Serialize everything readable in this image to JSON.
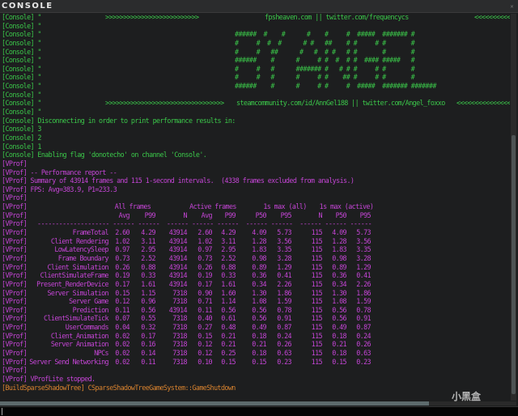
{
  "window": {
    "title": "CONSOLE",
    "watermark": "小黑盒"
  },
  "colors": {
    "console": "#3bc84a",
    "vprof": "#c545d6",
    "build": "#d9832f",
    "background": "#1d1e1f"
  },
  "console_prefix": "[Console] \"",
  "banner1": {
    "left": ">>>>>>>>>>>>>>>>>>>>>>>>>>",
    "center": "fpsheaven.com || twitter.com/frequencycs",
    "right": "<<<<<<<<<<<<"
  },
  "art": [
    "######  #    #      #    #     #  #####  ####### #",
    "#     #  #  #      # #   ##    # #     # #       #",
    "#     #   ##      #   #  # #   # #       #       #",
    "######    #      #     # #  #  # #  #### #####   #",
    "#     #   #      ####### #   # # #     # #       #",
    "#     #   #      #     # #    ## #     # #       #",
    "######    #      #     # #     #  #####  ####### #######"
  ],
  "banner2": {
    "left": ">>>>>>>>>>>>>>>>>>>>>>>>>>>>>>>>>",
    "center": "steamcommunity.com/id/AnnGel188 || twitter.com/Angel_foxxo",
    "right": "<<<<<<<<<<<<<<<<"
  },
  "console_msgs": [
    "[Console] Disconnecting in order to print performance results in:",
    "[Console] 3",
    "[Console] 2",
    "[Console] 1",
    "[Console] Enabling flag 'donotecho' on channel 'Console'."
  ],
  "vprof_prefix": "[VProf]",
  "vprof_msgs": [
    "[VProf] -- Performance report --",
    "[VProf] Summary of 43914 frames and 115 1-second intervals.  (4338 frames excluded from analysis.)",
    "[VProf] FPS: Avg=383.9, P1=233.3"
  ],
  "table": {
    "groups": [
      "All frames",
      "Active frames",
      "1s max (all)",
      "1s max (active)"
    ],
    "columns": [
      "Avg",
      "P99",
      "N",
      "Avg",
      "P99",
      "P50",
      "P95",
      "N",
      "P50",
      "P95"
    ],
    "separator": "-------------------- ------ ------  ------ ------ ------  ------ ------  ------ ------ ------",
    "rows": [
      [
        "FrameTotal",
        "2.60",
        "4.29",
        "43914",
        "2.60",
        "4.29",
        "4.09",
        "5.73",
        "115",
        "4.09",
        "5.73"
      ],
      [
        "Client Rendering",
        "1.02",
        "3.11",
        "43914",
        "1.02",
        "3.11",
        "1.28",
        "3.56",
        "115",
        "1.28",
        "3.56"
      ],
      [
        "LowLatencySleep",
        "0.97",
        "2.95",
        "43914",
        "0.97",
        "2.95",
        "1.83",
        "3.35",
        "115",
        "1.83",
        "3.35"
      ],
      [
        "Frame Boundary",
        "0.73",
        "2.52",
        "43914",
        "0.73",
        "2.52",
        "0.98",
        "3.28",
        "115",
        "0.98",
        "3.28"
      ],
      [
        "Client Simulation",
        "0.26",
        "0.88",
        "43914",
        "0.26",
        "0.88",
        "0.89",
        "1.29",
        "115",
        "0.89",
        "1.29"
      ],
      [
        "ClientSimulateFrame",
        "0.19",
        "0.33",
        "43914",
        "0.19",
        "0.33",
        "0.36",
        "0.41",
        "115",
        "0.36",
        "0.41"
      ],
      [
        "Present_RenderDevice",
        "0.17",
        "1.61",
        "43914",
        "0.17",
        "1.61",
        "0.34",
        "2.26",
        "115",
        "0.34",
        "2.26"
      ],
      [
        "Server Simulation",
        "0.15",
        "1.15",
        "7318",
        "0.90",
        "1.60",
        "1.30",
        "1.86",
        "115",
        "1.30",
        "1.86"
      ],
      [
        "Server Game",
        "0.12",
        "0.96",
        "7318",
        "0.71",
        "1.14",
        "1.08",
        "1.59",
        "115",
        "1.08",
        "1.59"
      ],
      [
        "Prediction",
        "0.11",
        "0.56",
        "43914",
        "0.11",
        "0.56",
        "0.56",
        "0.78",
        "115",
        "0.56",
        "0.78"
      ],
      [
        "ClientSimulateTick",
        "0.07",
        "0.55",
        "7318",
        "0.40",
        "0.61",
        "0.56",
        "0.91",
        "115",
        "0.56",
        "0.91"
      ],
      [
        "UserCommands",
        "0.04",
        "0.32",
        "7318",
        "0.27",
        "0.48",
        "0.49",
        "0.87",
        "115",
        "0.49",
        "0.87"
      ],
      [
        "Client_Animation",
        "0.02",
        "0.17",
        "7318",
        "0.15",
        "0.21",
        "0.18",
        "0.24",
        "115",
        "0.18",
        "0.24"
      ],
      [
        "Server Animation",
        "0.02",
        "0.16",
        "7318",
        "0.12",
        "0.21",
        "0.21",
        "0.26",
        "115",
        "0.21",
        "0.26"
      ],
      [
        "NPCs",
        "0.02",
        "0.14",
        "7318",
        "0.12",
        "0.25",
        "0.18",
        "0.63",
        "115",
        "0.18",
        "0.63"
      ],
      [
        "Server Send Networking",
        "0.02",
        "0.11",
        "7318",
        "0.10",
        "0.15",
        "0.15",
        "0.23",
        "115",
        "0.15",
        "0.23"
      ]
    ]
  },
  "vprof_end": "[VProf] VProfLite stopped.",
  "build_prefix": "[BuildSparseShadowTree]",
  "build_msg": " CSparseShadowTreeGameSystem::GameShutdown"
}
